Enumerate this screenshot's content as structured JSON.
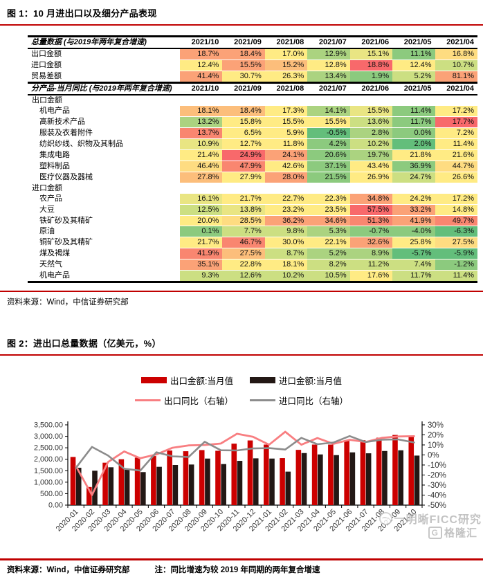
{
  "accent": {
    "rule_red": "#c00000",
    "bar_red": "#cc0000",
    "bar_black": "#231815",
    "line_pink": "#f87e81",
    "line_gray": "#8c8c8c"
  },
  "fig1": {
    "title": "图 1：10 月进出口以及细分产品表现",
    "source": "资料来源：Wind，中信证券研究部",
    "table": {
      "columns": [
        "2021/10",
        "2021/09",
        "2021/08",
        "2021/07",
        "2021/06",
        "2021/05",
        "2021/04"
      ],
      "palette": {
        "R": "#f8696b",
        "RO": "#f98670",
        "O": "#fba277",
        "LO": "#fcbe7b",
        "YO": "#fedc81",
        "Y": "#ffeb84",
        "PY": "#e9e583",
        "YG": "#ccdf82",
        "LG": "#abd380",
        "G": "#8cca7e",
        "DG": "#63be7b"
      },
      "sections": [
        {
          "header": "总量数据 (与2019年两年复合增速)",
          "rows": [
            {
              "label": "出口金额",
              "values": [
                "18.7%",
                "18.4%",
                "17.0%",
                "12.9%",
                "15.1%",
                "11.1%",
                "16.8%"
              ],
              "colors": [
                "O",
                "O",
                "Y",
                "LG",
                "PY",
                "G",
                "YO"
              ]
            },
            {
              "label": "进口金额",
              "values": [
                "12.4%",
                "15.5%",
                "15.2%",
                "12.8%",
                "18.8%",
                "12.4%",
                "10.7%"
              ],
              "colors": [
                "Y",
                "O",
                "LO",
                "Y",
                "R",
                "Y",
                "YG"
              ]
            },
            {
              "label": "贸易差额",
              "values": [
                "41.4%",
                "30.7%",
                "26.3%",
                "13.4%",
                "1.9%",
                "5.2%",
                "81.1%"
              ],
              "colors": [
                "O",
                "Y",
                "Y",
                "LG",
                "G",
                "YG",
                "O"
              ]
            }
          ]
        },
        {
          "header": "分产品-当月同比 (与2019年两年复合增速)",
          "groups": [
            {
              "label": "出口金额",
              "rows": [
                {
                  "label": "机电产品",
                  "values": [
                    "18.1%",
                    "18.4%",
                    "17.3%",
                    "14.1%",
                    "15.5%",
                    "11.4%",
                    "17.2%"
                  ],
                  "colors": [
                    "LO",
                    "LO",
                    "Y",
                    "LG",
                    "PY",
                    "G",
                    "Y"
                  ]
                },
                {
                  "label": "高新技术产品",
                  "values": [
                    "13.2%",
                    "15.8%",
                    "15.5%",
                    "15.5%",
                    "13.6%",
                    "11.7%",
                    "17.7%"
                  ],
                  "colors": [
                    "LG",
                    "Y",
                    "Y",
                    "Y",
                    "YG",
                    "G",
                    "R"
                  ]
                },
                {
                  "label": "服装及衣着附件",
                  "values": [
                    "13.7%",
                    "6.5%",
                    "5.9%",
                    "-0.5%",
                    "2.8%",
                    "0.0%",
                    "7.2%"
                  ],
                  "colors": [
                    "RO",
                    "Y",
                    "Y",
                    "DG",
                    "LG",
                    "G",
                    "Y"
                  ]
                },
                {
                  "label": "纺织纱线、织物及其制品",
                  "values": [
                    "10.9%",
                    "12.7%",
                    "11.8%",
                    "4.2%",
                    "10.2%",
                    "2.0%",
                    "11.4%"
                  ],
                  "colors": [
                    "PY",
                    "Y",
                    "Y",
                    "G",
                    "YG",
                    "DG",
                    "Y"
                  ]
                },
                {
                  "label": "集成电路",
                  "values": [
                    "21.4%",
                    "24.9%",
                    "24.1%",
                    "20.6%",
                    "19.7%",
                    "21.8%",
                    "21.6%"
                  ],
                  "colors": [
                    "Y",
                    "R",
                    "O",
                    "G",
                    "LG",
                    "Y",
                    "Y"
                  ]
                },
                {
                  "label": "塑料制品",
                  "values": [
                    "46.4%",
                    "47.9%",
                    "42.6%",
                    "37.1%",
                    "43.4%",
                    "36.9%",
                    "44.7%"
                  ],
                  "colors": [
                    "YO",
                    "RO",
                    "Y",
                    "G",
                    "Y",
                    "G",
                    "YO"
                  ]
                },
                {
                  "label": "医疗仪器及器械",
                  "values": [
                    "27.8%",
                    "27.9%",
                    "28.0%",
                    "21.5%",
                    "26.9%",
                    "24.7%",
                    "26.6%"
                  ],
                  "colors": [
                    "LO",
                    "Y",
                    "O",
                    "G",
                    "Y",
                    "YG",
                    "Y"
                  ]
                }
              ]
            },
            {
              "label": "进口金额",
              "rows": [
                {
                  "label": "农产品",
                  "values": [
                    "16.1%",
                    "21.7%",
                    "22.7%",
                    "22.3%",
                    "34.8%",
                    "24.2%",
                    "17.2%"
                  ],
                  "colors": [
                    "PY",
                    "Y",
                    "Y",
                    "Y",
                    "O",
                    "Y",
                    "Y"
                  ]
                },
                {
                  "label": "大豆",
                  "values": [
                    "12.5%",
                    "13.8%",
                    "23.2%",
                    "23.5%",
                    "57.5%",
                    "33.2%",
                    "14.8%"
                  ],
                  "colors": [
                    "YG",
                    "PY",
                    "Y",
                    "Y",
                    "R",
                    "O",
                    "Y"
                  ]
                },
                {
                  "label": "铁矿砂及其精矿",
                  "values": [
                    "20.0%",
                    "28.5%",
                    "36.2%",
                    "34.6%",
                    "51.3%",
                    "41.9%",
                    "49.7%"
                  ],
                  "colors": [
                    "Y",
                    "YO",
                    "O",
                    "O",
                    "RO",
                    "O",
                    "RO"
                  ]
                },
                {
                  "label": "原油",
                  "values": [
                    "0.1%",
                    "7.7%",
                    "9.8%",
                    "5.3%",
                    "-0.7%",
                    "-4.0%",
                    "-6.3%"
                  ],
                  "colors": [
                    "G",
                    "YG",
                    "YG",
                    "LG",
                    "G",
                    "G",
                    "DG"
                  ]
                },
                {
                  "label": "铜矿砂及其精矿",
                  "values": [
                    "21.7%",
                    "46.7%",
                    "30.0%",
                    "22.1%",
                    "32.6%",
                    "25.8%",
                    "27.5%"
                  ],
                  "colors": [
                    "Y",
                    "RO",
                    "Y",
                    "Y",
                    "O",
                    "Y",
                    "YO"
                  ]
                },
                {
                  "label": "煤及褐煤",
                  "values": [
                    "41.9%",
                    "27.5%",
                    "8.7%",
                    "5.2%",
                    "8.9%",
                    "-5.7%",
                    "-5.9%"
                  ],
                  "colors": [
                    "RO",
                    "LO",
                    "YG",
                    "LG",
                    "LG",
                    "DG",
                    "DG"
                  ]
                },
                {
                  "label": "天然气",
                  "values": [
                    "35.1%",
                    "22.8%",
                    "18.1%",
                    "8.2%",
                    "11.2%",
                    "7.4%",
                    "-1.2%"
                  ],
                  "colors": [
                    "O",
                    "Y",
                    "Y",
                    "YG",
                    "YG",
                    "YG",
                    "G"
                  ]
                },
                {
                  "label": "机电产品",
                  "values": [
                    "9.3%",
                    "12.6%",
                    "10.2%",
                    "10.5%",
                    "17.6%",
                    "11.7%",
                    "11.4%"
                  ],
                  "colors": [
                    "YG",
                    "YG",
                    "YG",
                    "YG",
                    "Y",
                    "YG",
                    "YG"
                  ]
                }
              ]
            }
          ]
        }
      ]
    }
  },
  "fig2": {
    "title": "图 2：进出口总量数据（亿美元，%）",
    "source": "资料来源：Wind，中信证券研究部",
    "note": "注：同比增速为较 2019 年同期的两年复合增速"
  },
  "chart_data": {
    "type": "bar+line",
    "title": "进出口总量数据（亿美元，%）",
    "categories": [
      "2020-01",
      "2020-02",
      "2020-03",
      "2020-04",
      "2020-05",
      "2020-06",
      "2020-07",
      "2020-08",
      "2020-09",
      "2020-10",
      "2020-11",
      "2020-12",
      "2021-01",
      "2021-02",
      "2021-03",
      "2021-04",
      "2021-05",
      "2021-06",
      "2021-07",
      "2021-08",
      "2021-09",
      "2021-10"
    ],
    "series": [
      {
        "name": "出口金额:当月值",
        "type": "bar",
        "axis": "left",
        "color": "#cc0000",
        "values": [
          2100,
          790,
          1850,
          2000,
          2070,
          2140,
          2380,
          2350,
          2400,
          2370,
          2680,
          2820,
          2640,
          2050,
          2410,
          2640,
          2640,
          2810,
          2830,
          2940,
          3060,
          3000
        ]
      },
      {
        "name": "进口金额:当月值",
        "type": "bar",
        "axis": "left",
        "color": "#231815",
        "values": [
          1630,
          1500,
          1650,
          1550,
          1440,
          1670,
          1750,
          1770,
          2030,
          1790,
          1930,
          2040,
          2030,
          1460,
          2270,
          2210,
          2180,
          2300,
          2260,
          2360,
          2390,
          2160
        ]
      },
      {
        "name": "出口同比（右轴）",
        "type": "line",
        "axis": "right",
        "color": "#f87e81",
        "values": [
          -11,
          -40,
          -7,
          3.5,
          -3.3,
          0.5,
          7.2,
          9.5,
          9.9,
          11.4,
          21.1,
          18.1,
          10.2,
          23.1,
          10.2,
          16.8,
          11.1,
          15.1,
          12.9,
          17.0,
          18.4,
          18.7
        ]
      },
      {
        "name": "进口同比（右轴）",
        "type": "line",
        "axis": "right",
        "color": "#8c8c8c",
        "values": [
          -13,
          8,
          -0.6,
          -13.7,
          -15.6,
          2.7,
          -1.4,
          -2.1,
          13.2,
          4.7,
          4.5,
          6.5,
          6.8,
          5.4,
          17.0,
          10.7,
          12.4,
          18.8,
          12.8,
          15.2,
          15.5,
          12.4
        ]
      }
    ],
    "left_axis": {
      "min": 0,
      "max": 3500,
      "step": 500,
      "labels": [
        "3,500.00",
        "3,000.00",
        "2,500.00",
        "2,000.00",
        "1,500.00",
        "1,000.00",
        "500.00",
        "0.00"
      ]
    },
    "right_axis": {
      "min": -50,
      "max": 30,
      "step": 10,
      "labels": [
        "30%",
        "20%",
        "10%",
        "0%",
        "-10%",
        "-20%",
        "-30%",
        "-40%",
        "-50%"
      ]
    },
    "grid": false,
    "legend_position": "top"
  },
  "watermark": {
    "line1": "明晰FICC研究",
    "line2": "格隆汇"
  }
}
